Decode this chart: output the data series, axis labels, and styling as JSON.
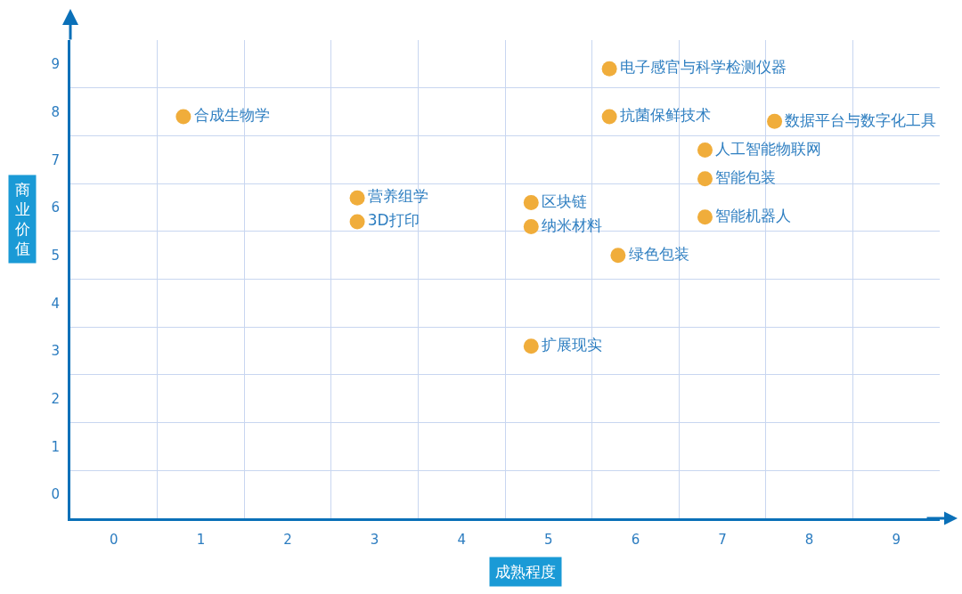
{
  "chart_data": {
    "type": "scatter",
    "xlabel": "成熟程度",
    "ylabel": "商业价值",
    "xlim": [
      -0.5,
      9.5
    ],
    "ylim": [
      -0.5,
      9.5
    ],
    "xticks": [
      0,
      1,
      2,
      3,
      4,
      5,
      6,
      7,
      8,
      9
    ],
    "yticks": [
      0,
      1,
      2,
      3,
      4,
      5,
      6,
      7,
      8,
      9
    ],
    "grid": true,
    "legend": false,
    "marker": "circle",
    "series": [
      {
        "name": "合成生物学",
        "color": "#f0ad3b",
        "x": [
          0.8
        ],
        "values": [
          7.9
        ]
      },
      {
        "name": "营养组学",
        "color": "#f0ad3b",
        "x": [
          2.8
        ],
        "values": [
          6.2
        ]
      },
      {
        "name": "3D打印",
        "color": "#f0ad3b",
        "x": [
          2.8
        ],
        "values": [
          5.7
        ]
      },
      {
        "name": "电子感官与科学检测仪器",
        "color": "#f0ad3b",
        "x": [
          5.7
        ],
        "values": [
          8.9
        ]
      },
      {
        "name": "抗菌保鲜技术",
        "color": "#f0ad3b",
        "x": [
          5.7
        ],
        "values": [
          7.9
        ]
      },
      {
        "name": "数据平台与数字化工具",
        "color": "#f0ad3b",
        "x": [
          7.6
        ],
        "values": [
          7.8
        ]
      },
      {
        "name": "人工智能物联网",
        "color": "#f0ad3b",
        "x": [
          6.8
        ],
        "values": [
          7.2
        ]
      },
      {
        "name": "智能包装",
        "color": "#f0ad3b",
        "x": [
          6.8
        ],
        "values": [
          6.6
        ]
      },
      {
        "name": "智能机器人",
        "color": "#f0ad3b",
        "x": [
          6.8
        ],
        "values": [
          5.8
        ]
      },
      {
        "name": "区块链",
        "color": "#f0ad3b",
        "x": [
          4.8
        ],
        "values": [
          6.1
        ]
      },
      {
        "name": "纳米材料",
        "color": "#f0ad3b",
        "x": [
          4.8
        ],
        "values": [
          5.6
        ]
      },
      {
        "name": "绿色包装",
        "color": "#f0ad3b",
        "x": [
          5.8
        ],
        "values": [
          5.0
        ]
      },
      {
        "name": "扩展现实",
        "color": "#f0ad3b",
        "x": [
          4.8
        ],
        "values": [
          3.1
        ]
      }
    ]
  }
}
